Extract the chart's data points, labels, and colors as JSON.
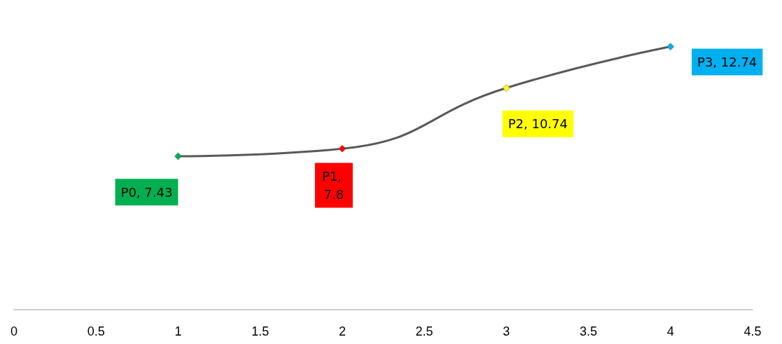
{
  "chart_data": {
    "type": "line",
    "x": [
      1,
      2,
      3,
      4
    ],
    "series": [
      {
        "color": "#595959",
        "values": [
          7.43,
          7.8,
          10.74,
          12.74
        ],
        "colors": [
          "#00b050",
          "#ff0000",
          "#ffff00",
          "#00b0f0"
        ],
        "value_labels": [
          "P0, 7.43",
          "P1, 7.8",
          "P2, 10.74",
          "P3, 12.74"
        ]
      }
    ],
    "xlim": [
      0,
      4.5
    ],
    "xticks": [
      0,
      0.5,
      1,
      1.5,
      2,
      2.5,
      3,
      3.5,
      4,
      4.5
    ],
    "tick_labels": "x",
    "grid": false,
    "marker": "diamond",
    "line_style": "solid"
  }
}
